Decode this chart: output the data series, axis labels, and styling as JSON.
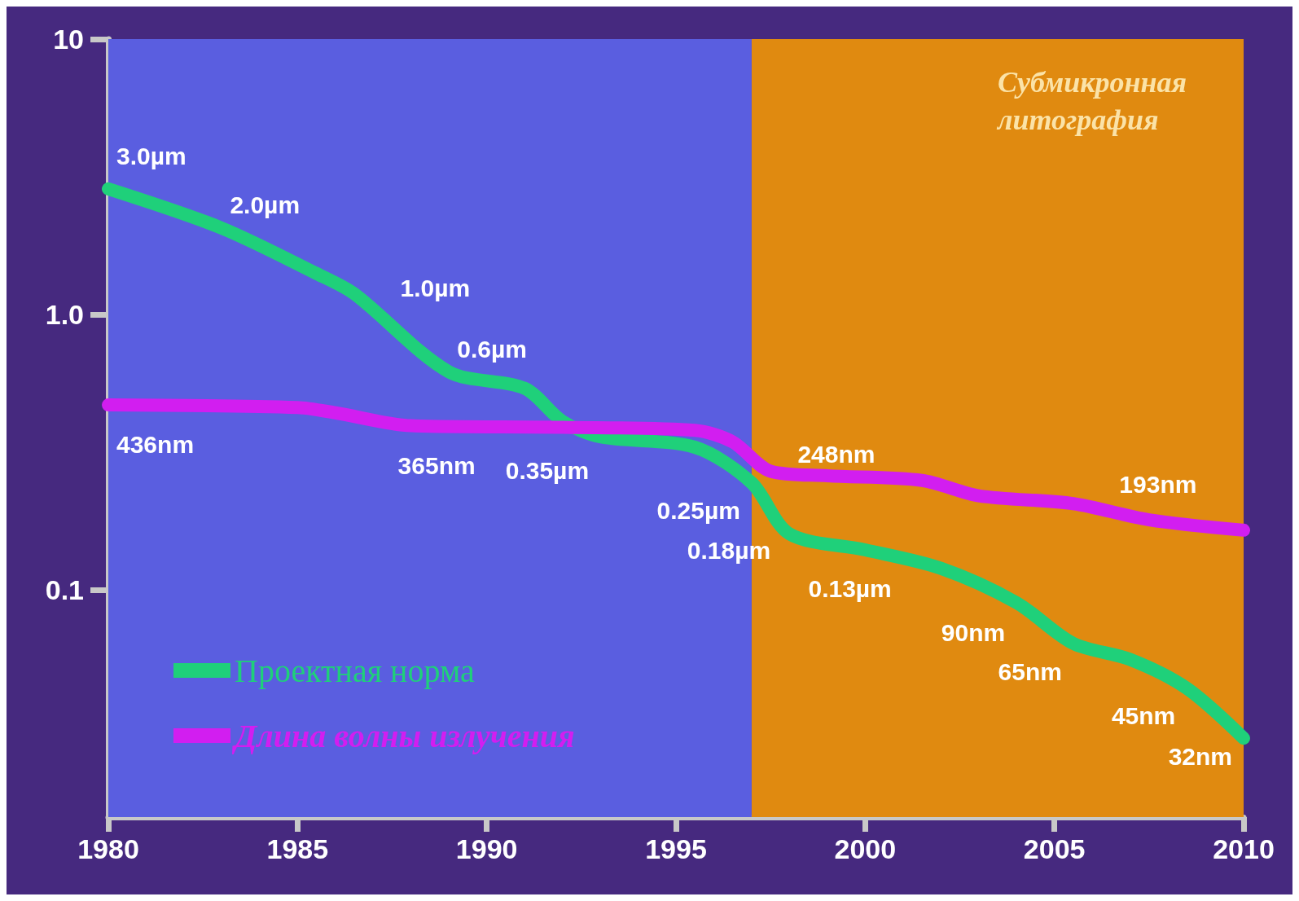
{
  "chart_data": {
    "type": "line",
    "xlim": [
      1980,
      2010
    ],
    "xticks": [
      1980,
      1985,
      1990,
      1995,
      2000,
      2005,
      2010
    ],
    "ylim": [
      0.015,
      10
    ],
    "yticks": [
      {
        "value": 10,
        "label": "10"
      },
      {
        "value": 1,
        "label": "1.0"
      },
      {
        "value": 0.1,
        "label": "0.1"
      }
    ],
    "log": "y",
    "grid": false,
    "legend": "bottom left",
    "marker": "none",
    "line_style": "solid",
    "series": [
      {
        "name": "Проектная норма",
        "color": "#1fd07a",
        "x": [
          1980,
          1983,
          1985.5,
          1986.5,
          1989,
          1991,
          1992,
          1993,
          1995.5,
          1997,
          1998,
          2000,
          2002,
          2004,
          2005.5,
          2007,
          2008.5,
          2010
        ],
        "values": [
          2.86,
          2.06,
          1.41,
          1.19,
          0.62,
          0.54,
          0.41,
          0.36,
          0.33,
          0.245,
          0.16,
          0.14,
          0.12,
          0.09,
          0.064,
          0.056,
          0.044,
          0.029
        ]
      },
      {
        "name": "Длина волны излучения",
        "color": "#d21ef0",
        "x": [
          1980,
          1985,
          1986,
          1988,
          1992,
          1995.5,
          1996.5,
          1997.5,
          1999,
          2001.5,
          2003,
          2005.5,
          2007.5,
          2010
        ],
        "values": [
          0.47,
          0.46,
          0.44,
          0.395,
          0.39,
          0.38,
          0.345,
          0.27,
          0.26,
          0.25,
          0.22,
          0.206,
          0.18,
          0.165
        ]
      }
    ],
    "bands": [
      {
        "axis": "x",
        "from": 1980,
        "to": 1997,
        "color": "#5a5ee0"
      },
      {
        "axis": "x",
        "from": 1997,
        "to": 2010,
        "color": "#e08a10",
        "label": "Субмикронная\nлитография"
      }
    ],
    "annotations": [
      {
        "text": "3.0µm",
        "x": 1980,
        "y": 3.0
      },
      {
        "text": "2.0µm",
        "x": 1983,
        "y": 2.0
      },
      {
        "text": "1.0µm",
        "x": 1987.5,
        "y": 1.0
      },
      {
        "text": "0.6µm",
        "x": 1989,
        "y": 0.6
      },
      {
        "text": "0.35µm",
        "x": 1993,
        "y": 0.35
      },
      {
        "text": "0.25µm",
        "x": 1997,
        "y": 0.25
      },
      {
        "text": "0.18µm",
        "x": 1997.8,
        "y": 0.18
      },
      {
        "text": "0.13µm",
        "x": 2001,
        "y": 0.13
      },
      {
        "text": "90nm",
        "x": 2004,
        "y": 0.09
      },
      {
        "text": "65nm",
        "x": 2005.5,
        "y": 0.065
      },
      {
        "text": "45nm",
        "x": 2008.5,
        "y": 0.045
      },
      {
        "text": "32nm",
        "x": 2010,
        "y": 0.032
      },
      {
        "text": "436nm",
        "x": 1980,
        "y": 0.436
      },
      {
        "text": "365nm",
        "x": 1990,
        "y": 0.365
      },
      {
        "text": "248nm",
        "x": 1998,
        "y": 0.248
      },
      {
        "text": "193nm",
        "x": 2006.5,
        "y": 0.193
      }
    ]
  }
}
